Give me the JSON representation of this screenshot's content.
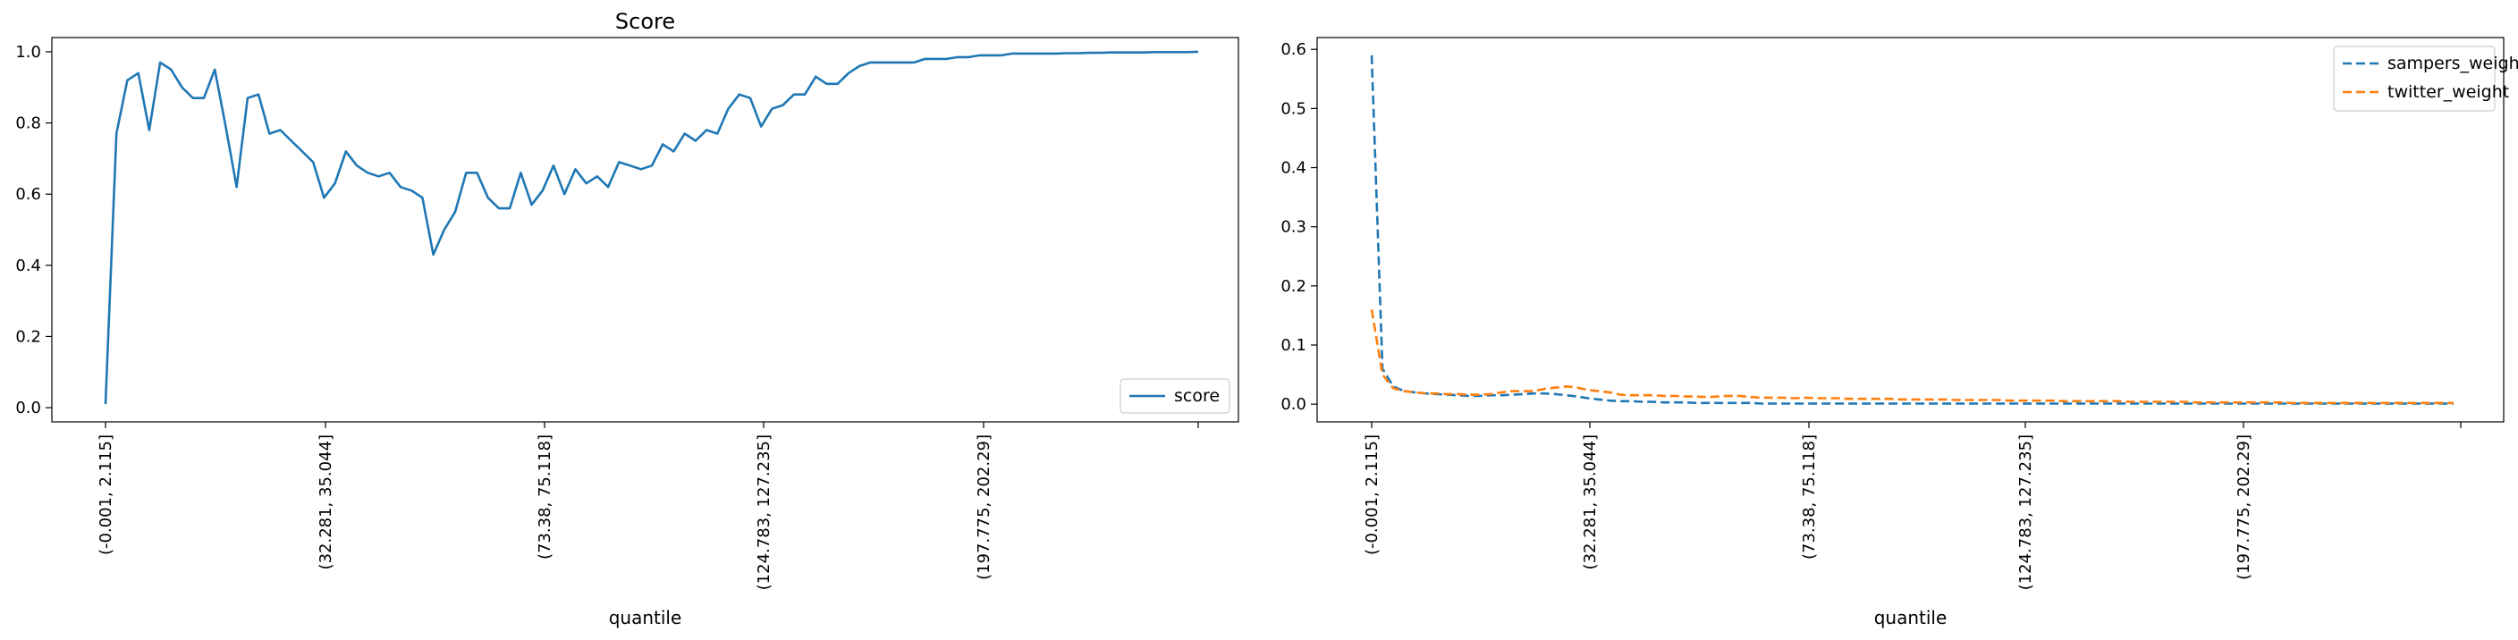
{
  "chart_data": [
    {
      "type": "line",
      "title": "Score",
      "xlabel": "quantile",
      "ylabel": "",
      "ylim": [
        -0.04,
        1.04
      ],
      "yticks": [
        "0.0",
        "0.2",
        "0.4",
        "0.6",
        "0.8",
        "1.0"
      ],
      "x_tick_labels": [
        "(-0.001, 2.115]",
        "(32.281, 35.044]",
        "(73.38, 75.118]",
        "(124.783, 127.235]",
        "(197.775, 202.29]",
        ""
      ],
      "legend": "lower-right",
      "grid": false,
      "series": [
        {
          "name": "score",
          "color": "#1f77b4",
          "style": "solid",
          "values": [
            0.01,
            0.77,
            0.92,
            0.94,
            0.78,
            0.97,
            0.95,
            0.9,
            0.87,
            0.87,
            0.95,
            0.79,
            0.62,
            0.87,
            0.88,
            0.77,
            0.78,
            0.75,
            0.72,
            0.69,
            0.59,
            0.63,
            0.72,
            0.68,
            0.66,
            0.65,
            0.66,
            0.62,
            0.61,
            0.59,
            0.43,
            0.5,
            0.55,
            0.66,
            0.66,
            0.59,
            0.56,
            0.56,
            0.66,
            0.57,
            0.61,
            0.68,
            0.6,
            0.67,
            0.63,
            0.65,
            0.62,
            0.69,
            0.68,
            0.67,
            0.68,
            0.74,
            0.72,
            0.77,
            0.75,
            0.78,
            0.77,
            0.84,
            0.88,
            0.87,
            0.79,
            0.84,
            0.85,
            0.88,
            0.88,
            0.93,
            0.91,
            0.91,
            0.94,
            0.96,
            0.97,
            0.97,
            0.97,
            0.97,
            0.97,
            0.98,
            0.98,
            0.98,
            0.985,
            0.985,
            0.99,
            0.99,
            0.99,
            0.995,
            0.995,
            0.995,
            0.995,
            0.995,
            0.996,
            0.996,
            0.997,
            0.997,
            0.998,
            0.998,
            0.998,
            0.998,
            0.999,
            0.999,
            0.999,
            0.999,
            1.0
          ]
        }
      ]
    },
    {
      "type": "line",
      "title": "",
      "xlabel": "quantile",
      "ylabel": "",
      "ylim": [
        -0.03,
        0.62
      ],
      "yticks": [
        "0.0",
        "0.1",
        "0.2",
        "0.3",
        "0.4",
        "0.5",
        "0.6"
      ],
      "x_tick_labels": [
        "(-0.001, 2.115]",
        "(32.281, 35.044]",
        "(73.38, 75.118]",
        "(124.783, 127.235]",
        "(197.775, 202.29]",
        ""
      ],
      "legend": "upper-right",
      "grid": false,
      "series": [
        {
          "name": "sampers_weight",
          "color": "#1f77b4",
          "style": "dashed",
          "values": [
            0.59,
            0.06,
            0.03,
            0.022,
            0.02,
            0.018,
            0.017,
            0.016,
            0.015,
            0.014,
            0.014,
            0.015,
            0.015,
            0.016,
            0.017,
            0.018,
            0.018,
            0.017,
            0.015,
            0.013,
            0.01,
            0.008,
            0.006,
            0.005,
            0.005,
            0.004,
            0.004,
            0.003,
            0.003,
            0.003,
            0.002,
            0.002,
            0.002,
            0.002,
            0.002,
            0.002,
            0.001,
            0.001,
            0.001,
            0.001,
            0.001,
            0.001,
            0.001,
            0.001,
            0.001,
            0.001,
            0.001,
            0.001,
            0.001,
            0.001,
            0.001,
            0.001,
            0.001,
            0.001,
            0.001,
            0.001,
            0.001,
            0.001,
            0.001,
            0.001,
            0.001,
            0.001,
            0.001,
            0.001,
            0.001,
            0.001,
            0.001,
            0.001,
            0.001,
            0.001,
            0.001,
            0.001,
            0.001,
            0.001,
            0.001,
            0.001,
            0.001,
            0.001,
            0.001,
            0.001,
            0.001,
            0.001,
            0.001,
            0.001,
            0.001,
            0.001,
            0.001,
            0.001,
            0.001,
            0.001,
            0.001,
            0.001,
            0.001,
            0.001,
            0.001,
            0.001,
            0.001,
            0.001,
            0.001,
            0.001,
            0.001
          ]
        },
        {
          "name": "twitter_weight",
          "color": "#ff7f0e",
          "style": "dashed",
          "values": [
            0.16,
            0.05,
            0.027,
            0.022,
            0.02,
            0.018,
            0.018,
            0.017,
            0.017,
            0.016,
            0.016,
            0.017,
            0.02,
            0.022,
            0.022,
            0.022,
            0.026,
            0.028,
            0.03,
            0.028,
            0.024,
            0.022,
            0.02,
            0.016,
            0.015,
            0.015,
            0.015,
            0.014,
            0.014,
            0.013,
            0.013,
            0.012,
            0.013,
            0.014,
            0.014,
            0.012,
            0.011,
            0.011,
            0.011,
            0.01,
            0.011,
            0.01,
            0.01,
            0.01,
            0.009,
            0.009,
            0.009,
            0.009,
            0.009,
            0.008,
            0.008,
            0.008,
            0.008,
            0.008,
            0.007,
            0.007,
            0.007,
            0.007,
            0.007,
            0.006,
            0.006,
            0.006,
            0.006,
            0.006,
            0.005,
            0.005,
            0.005,
            0.005,
            0.005,
            0.005,
            0.004,
            0.004,
            0.004,
            0.004,
            0.004,
            0.004,
            0.003,
            0.003,
            0.003,
            0.003,
            0.003,
            0.003,
            0.003,
            0.003,
            0.003,
            0.002,
            0.002,
            0.002,
            0.002,
            0.002,
            0.002,
            0.002,
            0.002,
            0.002,
            0.002,
            0.002,
            0.002,
            0.002,
            0.002,
            0.002,
            0.002
          ]
        }
      ]
    }
  ]
}
